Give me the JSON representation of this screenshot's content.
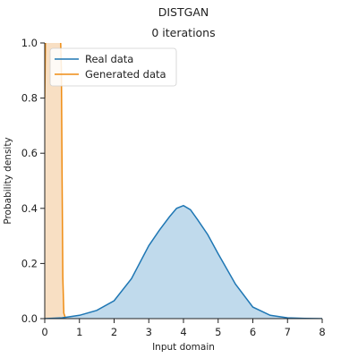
{
  "colors": {
    "real": "#1f77b4",
    "real_fill": "#b9d6ea",
    "generated": "#ef8c12",
    "generated_fill": "#f7dcbc",
    "axis": "#222222"
  },
  "chart_data": {
    "type": "area",
    "title": "DISTGAN",
    "subtitle": "0 iterations",
    "xlabel": "Input domain",
    "ylabel": "Probability density",
    "xlim": [
      0,
      8
    ],
    "ylim": [
      0,
      1.0
    ],
    "xticks": [
      0,
      1,
      2,
      3,
      4,
      5,
      6,
      7,
      8
    ],
    "xtick_labels": [
      "0",
      "1",
      "2",
      "3",
      "4",
      "5",
      "6",
      "7",
      "8"
    ],
    "yticks": [
      0,
      0.2,
      0.4,
      0.6,
      0.8,
      1.0
    ],
    "ytick_labels": [
      "0.0",
      "0.2",
      "0.4",
      "0.6",
      "0.8",
      "1.0"
    ],
    "grid": false,
    "legend_position": "top-left",
    "series": [
      {
        "name": "Real data",
        "x": [
          0,
          0.5,
          1.0,
          1.5,
          2.0,
          2.5,
          3.0,
          3.3,
          3.6,
          3.8,
          4.0,
          4.2,
          4.4,
          4.7,
          5.0,
          5.5,
          6.0,
          6.5,
          7.0,
          7.5,
          8.0
        ],
        "y": [
          0.0,
          0.003,
          0.012,
          0.03,
          0.065,
          0.145,
          0.265,
          0.32,
          0.37,
          0.4,
          0.41,
          0.395,
          0.36,
          0.305,
          0.235,
          0.125,
          0.042,
          0.012,
          0.003,
          0.001,
          0.0
        ]
      },
      {
        "name": "Generated data",
        "x": [
          0.0,
          0.02,
          0.04,
          0.08,
          0.2,
          0.35,
          0.45,
          0.48,
          0.5,
          0.52,
          0.55,
          0.6
        ],
        "y": [
          0.8,
          1.0,
          1.05,
          1.08,
          1.08,
          1.08,
          1.05,
          0.9,
          0.5,
          0.15,
          0.02,
          0.0
        ]
      }
    ]
  }
}
